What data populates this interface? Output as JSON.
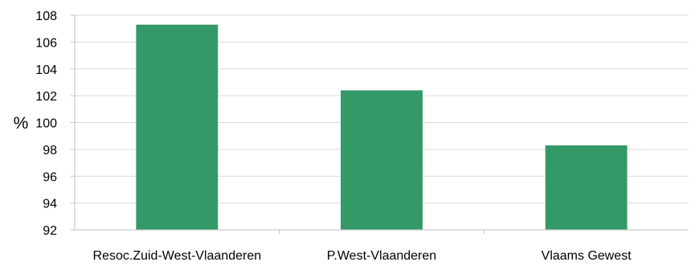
{
  "colors": {
    "bar": "#339966",
    "gridline": "#d9d9d9",
    "axis": "#bfbfbf",
    "text": "#000000"
  },
  "chart_data": {
    "type": "bar",
    "title": "",
    "xlabel": "",
    "ylabel": "%",
    "categories": [
      "Resoc.Zuid-West-Vlaanderen",
      "P.West-Vlaanderen",
      "Vlaams Gewest"
    ],
    "values": [
      107.3,
      102.4,
      98.3
    ],
    "ylim": [
      92,
      108
    ],
    "yticks": [
      92,
      94,
      96,
      98,
      100,
      102,
      104,
      106,
      108
    ],
    "grid": true,
    "legend": "none"
  }
}
